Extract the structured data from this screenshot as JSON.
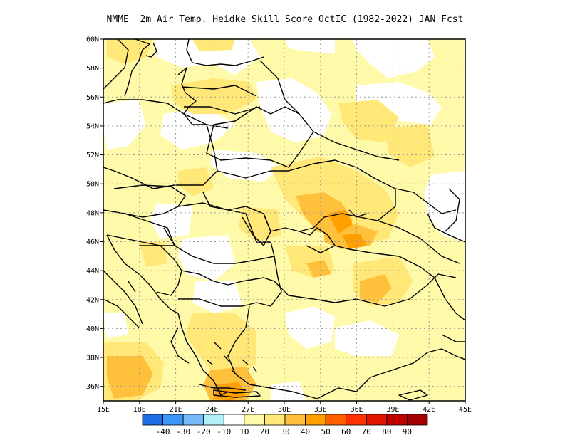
{
  "title": "NMME  2m Air Temp. Heidke Skill Score OctIC (1982-2022) JAN Fcst",
  "map": {
    "lon_range": [
      15,
      45
    ],
    "lat_range": [
      35,
      60
    ],
    "lat_ticks": [
      "60N",
      "58N",
      "56N",
      "54N",
      "52N",
      "50N",
      "48N",
      "46N",
      "44N",
      "42N",
      "40N",
      "38N",
      "36N"
    ],
    "lon_ticks": [
      "15E",
      "18E",
      "21E",
      "24E",
      "27E",
      "30E",
      "33E",
      "36E",
      "39E",
      "42E",
      "45E"
    ],
    "grid": "dotted"
  },
  "colorbar": {
    "colors": [
      "#1e6be6",
      "#3c96f5",
      "#78b9fa",
      "#b4f0fa",
      "#ffffff",
      "#fffaaa",
      "#ffe878",
      "#ffc03c",
      "#ffa000",
      "#ff6000",
      "#ff3200",
      "#e11400",
      "#c00000",
      "#a50000"
    ],
    "labels": [
      "-40",
      "-30",
      "-20",
      "-10",
      "10",
      "20",
      "30",
      "40",
      "50",
      "60",
      "70",
      "80",
      "90"
    ]
  },
  "fill_colors": {
    "c10": "#fffaaa",
    "c20": "#ffe878",
    "c30": "#ffc03c",
    "c40": "#ffa000"
  }
}
